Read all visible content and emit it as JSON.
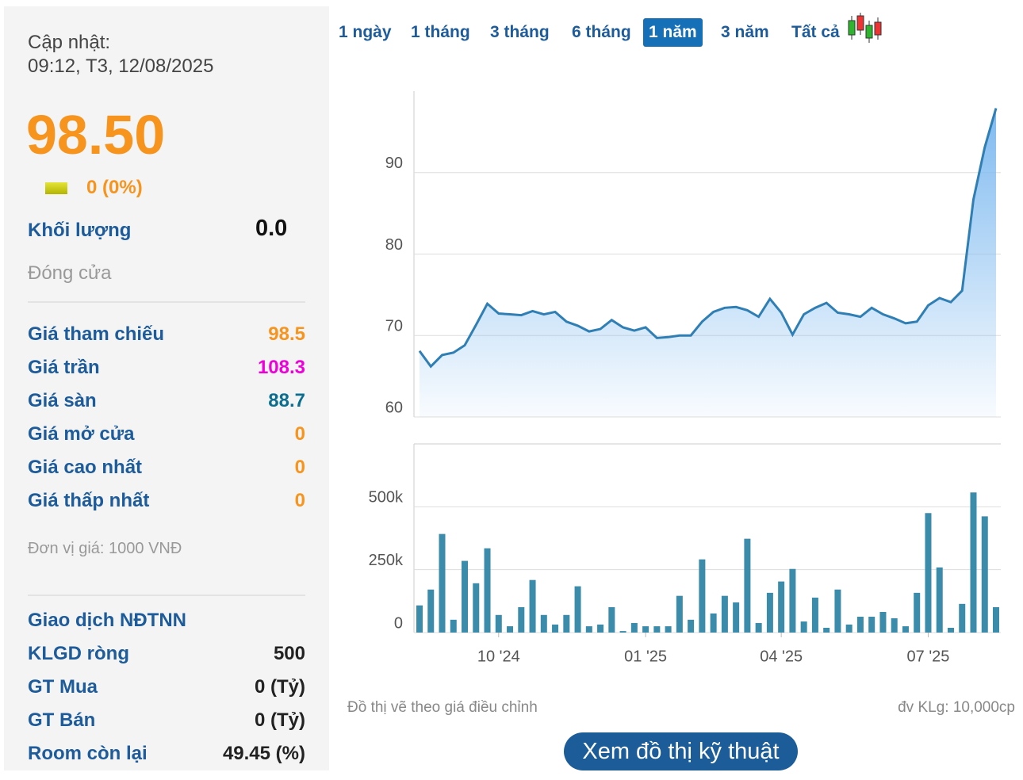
{
  "sidebar": {
    "updated_label": "Cập nhật:",
    "updated_time": "09:12, T3, 12/08/2025",
    "price": "98.50",
    "change": "0 (0%)",
    "volume_label": "Khối lượng",
    "volume": "0.0",
    "status": "Đóng cửa",
    "rows": [
      {
        "label": "Giá tham chiếu",
        "value": "98.5",
        "color": "#f7941d"
      },
      {
        "label": "Giá trần",
        "value": "108.3",
        "color": "#ee00d8"
      },
      {
        "label": "Giá sàn",
        "value": "88.7",
        "color": "#0b6e8f"
      },
      {
        "label": "Giá mở cửa",
        "value": "0",
        "color": "#f7941d"
      },
      {
        "label": "Giá cao nhất",
        "value": "0",
        "color": "#f7941d"
      },
      {
        "label": "Giá thấp nhất",
        "value": "0",
        "color": "#f7941d"
      }
    ],
    "unit_note": "Đơn vị giá: 1000 VNĐ",
    "foreign_title": "Giao dịch NĐTNN",
    "foreign_rows": [
      {
        "label": "KLGD ròng",
        "value": "500"
      },
      {
        "label": "GT Mua",
        "value": "0 (Tỷ)"
      },
      {
        "label": "GT Bán",
        "value": "0 (Tỷ)"
      },
      {
        "label": "Room còn lại",
        "value": "49.45 (%)"
      }
    ]
  },
  "tabs": {
    "items": [
      "1 ngày",
      "1 tháng",
      "3 tháng",
      "6 tháng",
      "1 năm",
      "3 năm",
      "Tất cả"
    ],
    "active": 4
  },
  "chart_data": [
    {
      "type": "area",
      "color": "#2f7fb5",
      "values": [
        68.1,
        66.2,
        67.6,
        67.9,
        68.8,
        71.3,
        73.9,
        72.7,
        72.6,
        72.5,
        73.0,
        72.6,
        72.9,
        71.7,
        71.2,
        70.5,
        70.8,
        71.9,
        71.0,
        70.6,
        71.0,
        69.7,
        69.8,
        70.0,
        70.0,
        71.7,
        72.9,
        73.4,
        73.5,
        73.1,
        72.3,
        74.5,
        72.8,
        70.1,
        72.6,
        73.4,
        74.0,
        72.8,
        72.6,
        72.3,
        73.4,
        72.6,
        72.1,
        71.5,
        71.7,
        73.7,
        74.6,
        74.1,
        75.5,
        86.7,
        93.1,
        97.9
      ],
      "ylim": [
        60,
        100
      ],
      "yticks": [
        60,
        70,
        80,
        90
      ],
      "grid": true
    },
    {
      "type": "bar",
      "color": "#3b8bab",
      "categories": [
        null,
        null,
        null,
        null,
        null,
        null,
        null,
        "10 '24",
        null,
        null,
        null,
        null,
        null,
        null,
        null,
        null,
        null,
        null,
        null,
        null,
        "01 '25",
        null,
        null,
        null,
        null,
        null,
        null,
        null,
        null,
        null,
        null,
        null,
        "04 '25",
        null,
        null,
        null,
        null,
        null,
        null,
        null,
        null,
        null,
        null,
        null,
        null,
        "07 '25",
        null,
        null,
        null,
        null,
        null,
        null
      ],
      "values": [
        108000,
        171000,
        392000,
        51000,
        285000,
        196000,
        335000,
        70000,
        25000,
        101000,
        209000,
        70000,
        32000,
        70000,
        184000,
        25000,
        32000,
        101000,
        6000,
        38000,
        25000,
        25000,
        25000,
        146000,
        51000,
        291000,
        76000,
        146000,
        120000,
        373000,
        38000,
        158000,
        203000,
        253000,
        44000,
        139000,
        19000,
        171000,
        32000,
        63000,
        63000,
        82000,
        57000,
        25000,
        158000,
        475000,
        259000,
        19000,
        114000,
        557000,
        462000,
        101000
      ],
      "ylim": [
        0,
        750000
      ],
      "yticks": [
        0,
        {
          "value": 250000,
          "label": "250k"
        },
        {
          "value": 500000,
          "label": "500k"
        }
      ],
      "grid": true
    }
  ],
  "footer": {
    "note": "Đồ thị vẽ theo giá điều chỉnh",
    "unit": "đv KLg: 10,000cp",
    "button": "Xem đồ thị kỹ thuật"
  }
}
